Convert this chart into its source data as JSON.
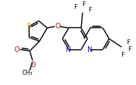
{
  "bg_color": "#ffffff",
  "bond_color": "#000000",
  "S_color": "#cc8800",
  "N_color": "#0000cc",
  "O_color": "#cc0000",
  "F_color": "#000000",
  "lw": 1.1,
  "figsize": [
    1.96,
    1.23
  ],
  "dpi": 100,
  "xlim": [
    0,
    196
  ],
  "ylim": [
    0,
    123
  ]
}
